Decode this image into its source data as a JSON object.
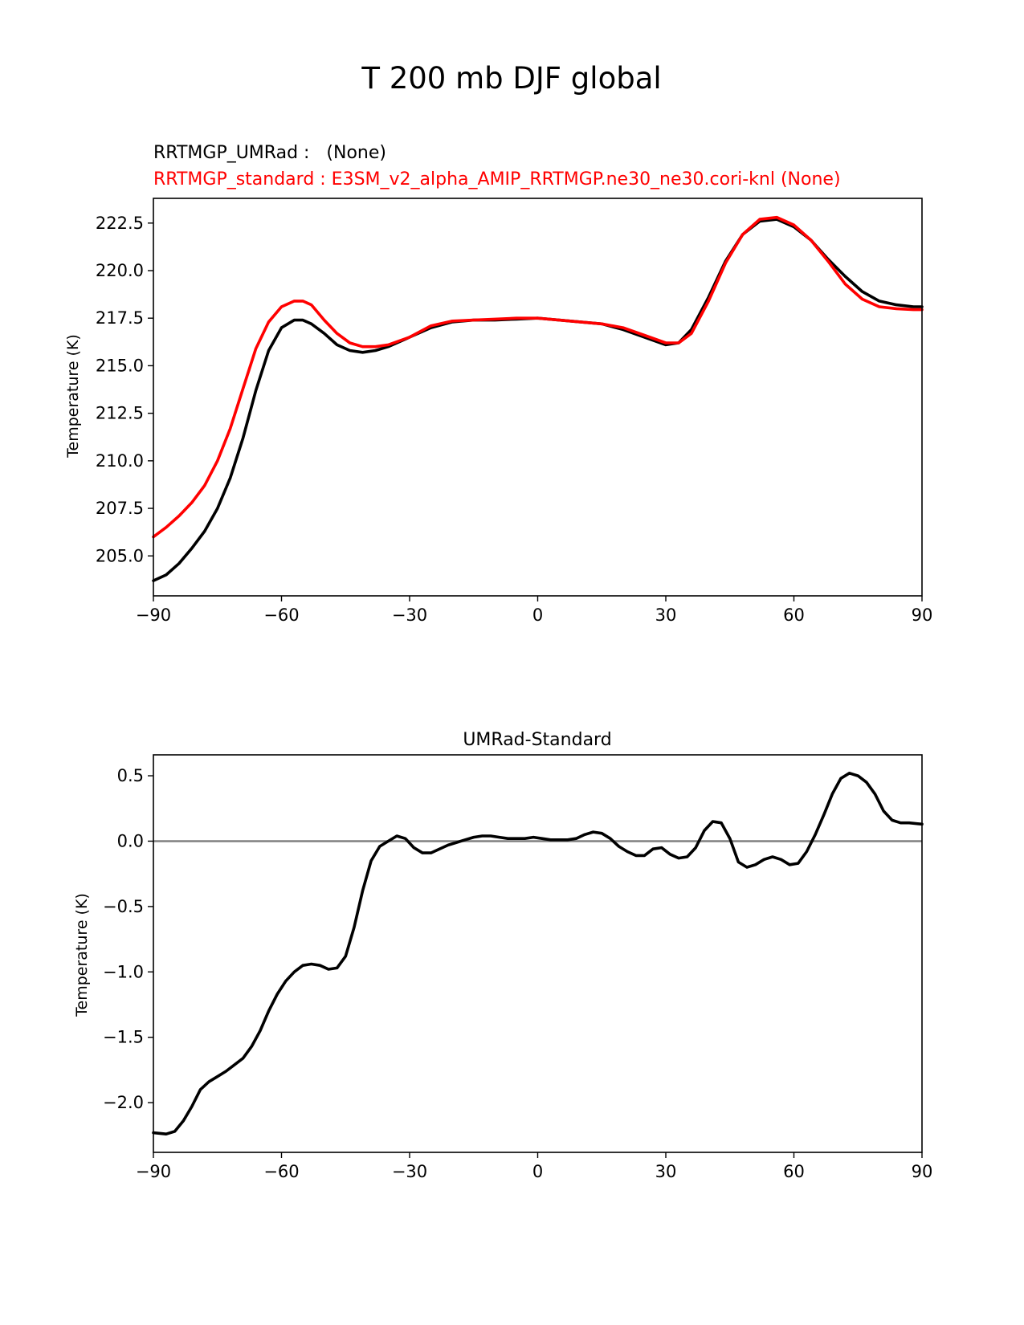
{
  "figure": {
    "suptitle": "T 200 mb DJF global"
  },
  "chart_data": [
    {
      "type": "line",
      "title": "",
      "legend_lines": [
        {
          "text": "RRTMGP_UMRad :   (None)",
          "color": "#000000"
        },
        {
          "text": "RRTMGP_standard : E3SM_v2_alpha_AMIP_RRTMGP.ne30_ne30.cori-knl (None)",
          "color": "#ff0000"
        }
      ],
      "legend_placement": "top-left, above plot",
      "xlabel": "",
      "ylabel": "Temperature (K)",
      "xlim": [
        -90,
        90
      ],
      "ylim": [
        202.9,
        223.8
      ],
      "xticks": [
        -90,
        -60,
        -30,
        0,
        30,
        60,
        90
      ],
      "xtick_labels": [
        "−90",
        "−60",
        "−30",
        "0",
        "30",
        "60",
        "90"
      ],
      "yticks": [
        205.0,
        207.5,
        210.0,
        212.5,
        215.0,
        217.5,
        220.0,
        222.5
      ],
      "ytick_labels": [
        "205.0",
        "207.5",
        "210.0",
        "212.5",
        "215.0",
        "217.5",
        "220.0",
        "222.5"
      ],
      "grid": false,
      "series": [
        {
          "color": "#000000",
          "x": [
            -90,
            -87,
            -84,
            -81,
            -78,
            -75,
            -72,
            -69,
            -66,
            -63,
            -60,
            -57,
            -55,
            -53,
            -50,
            -47,
            -44,
            -41,
            -38,
            -35,
            -30,
            -25,
            -20,
            -15,
            -10,
            -5,
            0,
            5,
            10,
            15,
            20,
            25,
            30,
            33,
            36,
            40,
            44,
            48,
            52,
            56,
            60,
            64,
            68,
            72,
            76,
            80,
            84,
            88,
            90
          ],
          "y": [
            203.7,
            204.0,
            204.6,
            205.4,
            206.3,
            207.5,
            209.1,
            211.2,
            213.7,
            215.8,
            217.0,
            217.4,
            217.4,
            217.2,
            216.7,
            216.1,
            215.8,
            215.7,
            215.8,
            216.0,
            216.5,
            217.0,
            217.3,
            217.4,
            217.4,
            217.45,
            217.5,
            217.4,
            217.3,
            217.2,
            216.9,
            216.5,
            216.1,
            216.2,
            216.9,
            218.6,
            220.5,
            221.9,
            222.6,
            222.7,
            222.3,
            221.6,
            220.6,
            219.7,
            218.9,
            218.4,
            218.2,
            218.1,
            218.1
          ]
        },
        {
          "color": "#ff0000",
          "x": [
            -90,
            -87,
            -84,
            -81,
            -78,
            -75,
            -72,
            -69,
            -66,
            -63,
            -60,
            -57,
            -55,
            -53,
            -50,
            -47,
            -44,
            -41,
            -38,
            -35,
            -30,
            -25,
            -20,
            -15,
            -10,
            -5,
            0,
            5,
            10,
            15,
            20,
            25,
            30,
            33,
            36,
            40,
            44,
            48,
            52,
            56,
            60,
            64,
            68,
            72,
            76,
            80,
            84,
            88,
            90
          ],
          "y": [
            206.0,
            206.5,
            207.1,
            207.8,
            208.7,
            210.0,
            211.7,
            213.8,
            215.9,
            217.3,
            218.1,
            218.4,
            218.4,
            218.2,
            217.4,
            216.7,
            216.2,
            216.0,
            216.0,
            216.1,
            216.5,
            217.1,
            217.35,
            217.4,
            217.45,
            217.5,
            217.5,
            217.4,
            217.3,
            217.2,
            217.0,
            216.6,
            216.2,
            216.2,
            216.7,
            218.4,
            220.4,
            221.9,
            222.7,
            222.8,
            222.4,
            221.6,
            220.5,
            219.3,
            218.5,
            218.1,
            218.0,
            217.95,
            217.95
          ]
        }
      ]
    },
    {
      "type": "line",
      "title": "UMRad-Standard",
      "xlabel": "",
      "ylabel": "Temperature (K)",
      "xlim": [
        -90,
        90
      ],
      "ylim": [
        -2.38,
        0.66
      ],
      "xticks": [
        -90,
        -60,
        -30,
        0,
        30,
        60,
        90
      ],
      "xtick_labels": [
        "−90",
        "−60",
        "−30",
        "0",
        "30",
        "60",
        "90"
      ],
      "yticks": [
        -2.0,
        -1.5,
        -1.0,
        -0.5,
        0.0,
        0.5
      ],
      "ytick_labels": [
        "−2.0",
        "−1.5",
        "−1.0",
        "−0.5",
        "0.0",
        "0.5"
      ],
      "grid": false,
      "zero_line_color": "#808080",
      "series": [
        {
          "color": "#000000",
          "x": [
            -90,
            -87,
            -85,
            -83,
            -81,
            -79,
            -77,
            -75,
            -73,
            -71,
            -69,
            -67,
            -65,
            -63,
            -61,
            -59,
            -57,
            -55,
            -53,
            -51,
            -49,
            -47,
            -45,
            -43,
            -41,
            -39,
            -37,
            -35,
            -33,
            -31,
            -29,
            -27,
            -25,
            -23,
            -21,
            -19,
            -17,
            -15,
            -13,
            -11,
            -9,
            -7,
            -5,
            -3,
            -1,
            1,
            3,
            5,
            7,
            9,
            11,
            13,
            15,
            17,
            19,
            21,
            23,
            25,
            27,
            29,
            31,
            33,
            35,
            37,
            39,
            41,
            43,
            45,
            47,
            49,
            51,
            53,
            55,
            57,
            59,
            61,
            63,
            65,
            67,
            69,
            71,
            73,
            75,
            77,
            79,
            81,
            83,
            85,
            87,
            90
          ],
          "y": [
            -2.23,
            -2.24,
            -2.22,
            -2.14,
            -2.03,
            -1.9,
            -1.84,
            -1.8,
            -1.76,
            -1.71,
            -1.66,
            -1.57,
            -1.45,
            -1.3,
            -1.17,
            -1.07,
            -1.0,
            -0.95,
            -0.94,
            -0.95,
            -0.98,
            -0.97,
            -0.88,
            -0.66,
            -0.38,
            -0.15,
            -0.04,
            0.0,
            0.04,
            0.02,
            -0.05,
            -0.09,
            -0.09,
            -0.06,
            -0.03,
            -0.01,
            0.01,
            0.03,
            0.04,
            0.04,
            0.03,
            0.02,
            0.02,
            0.02,
            0.03,
            0.02,
            0.01,
            0.01,
            0.01,
            0.02,
            0.05,
            0.07,
            0.06,
            0.02,
            -0.04,
            -0.08,
            -0.11,
            -0.11,
            -0.06,
            -0.05,
            -0.1,
            -0.13,
            -0.12,
            -0.05,
            0.08,
            0.15,
            0.14,
            0.02,
            -0.16,
            -0.2,
            -0.18,
            -0.14,
            -0.12,
            -0.14,
            -0.18,
            -0.17,
            -0.08,
            0.05,
            0.2,
            0.36,
            0.48,
            0.52,
            0.5,
            0.45,
            0.36,
            0.23,
            0.16,
            0.14,
            0.14,
            0.13
          ]
        }
      ]
    }
  ]
}
